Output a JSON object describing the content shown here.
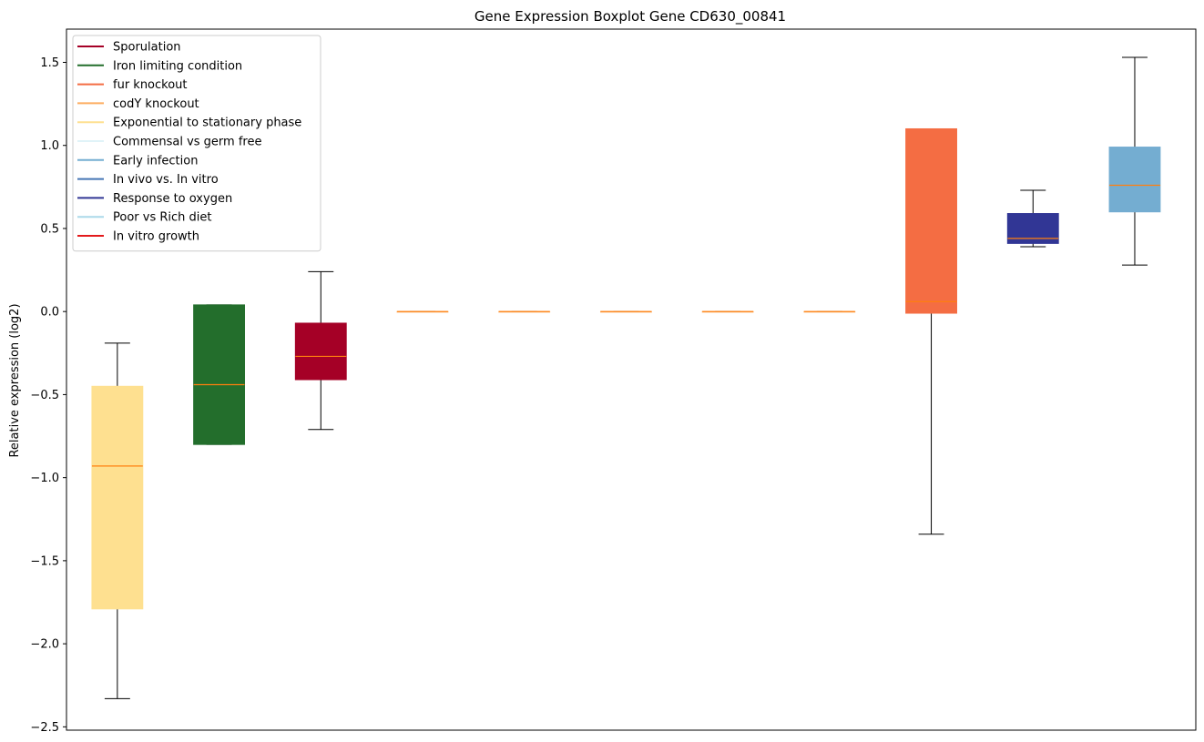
{
  "chart_data": {
    "type": "box",
    "title": "Gene Expression Boxplot Gene CD630_00841",
    "xlabel": "",
    "ylabel": "Relative expression (log2)",
    "ylim": [
      -2.52,
      1.7
    ],
    "yticks": [
      -2.5,
      -2.0,
      -1.5,
      -1.0,
      -0.5,
      0.0,
      0.5,
      1.0,
      1.5
    ],
    "ytick_labels": [
      "−2.5",
      "−2.0",
      "−1.5",
      "−1.0",
      "−0.5",
      "0.0",
      "0.5",
      "1.0",
      "1.5"
    ],
    "grid": false,
    "legend_position": "top-left",
    "median_color": "#ff7f0e",
    "legend": [
      {
        "label": "Sporulation",
        "color": "#a50026"
      },
      {
        "label": "Iron limiting condition",
        "color": "#236e2c"
      },
      {
        "label": "fur knockout",
        "color": "#f46d43"
      },
      {
        "label": "codY knockout",
        "color": "#fdae61"
      },
      {
        "label": "Exponential to stationary phase",
        "color": "#fee090"
      },
      {
        "label": "Commensal vs germ free",
        "color": "#e0f3f8"
      },
      {
        "label": "Early infection",
        "color": "#74add1"
      },
      {
        "label": "In vivo vs. In vitro",
        "color": "#4575b4"
      },
      {
        "label": "Response to oxygen",
        "color": "#313695"
      },
      {
        "label": "Poor vs Rich diet",
        "color": "#abd9e9"
      },
      {
        "label": "In vitro growth",
        "color": "#e31a1c"
      }
    ],
    "boxes": [
      {
        "color": "#fee090",
        "whislo": -2.33,
        "q1": -1.79,
        "med": -0.93,
        "q3": -0.45,
        "whishi": -0.19
      },
      {
        "color": "#236e2c",
        "whislo": -0.8,
        "q1": -0.8,
        "med": -0.44,
        "q3": 0.04,
        "whishi": 0.04
      },
      {
        "color": "#a50026",
        "whislo": -0.71,
        "q1": -0.41,
        "med": -0.27,
        "q3": -0.07,
        "whishi": 0.24
      },
      {
        "color": "#fdae61",
        "whislo": 0.0,
        "q1": 0.0,
        "med": 0.0,
        "q3": 0.0,
        "whishi": 0.0
      },
      {
        "color": "#fdae61",
        "whislo": 0.0,
        "q1": 0.0,
        "med": 0.0,
        "q3": 0.0,
        "whishi": 0.0
      },
      {
        "color": "#fdae61",
        "whislo": 0.0,
        "q1": 0.0,
        "med": 0.0,
        "q3": 0.0,
        "whishi": 0.0
      },
      {
        "color": "#fdae61",
        "whislo": 0.0,
        "q1": 0.0,
        "med": 0.0,
        "q3": 0.0,
        "whishi": 0.0
      },
      {
        "color": "#fdae61",
        "whislo": 0.0,
        "q1": 0.0,
        "med": 0.0,
        "q3": 0.0,
        "whishi": 0.0
      },
      {
        "color": "#f46d43",
        "whislo": -1.34,
        "q1": -0.01,
        "med": 0.06,
        "q3": 1.1,
        "whishi": 1.1
      },
      {
        "color": "#313695",
        "whislo": 0.39,
        "q1": 0.41,
        "med": 0.44,
        "q3": 0.59,
        "whishi": 0.73
      },
      {
        "color": "#74add1",
        "whislo": 0.28,
        "q1": 0.6,
        "med": 0.76,
        "q3": 0.99,
        "whishi": 1.53
      }
    ]
  }
}
